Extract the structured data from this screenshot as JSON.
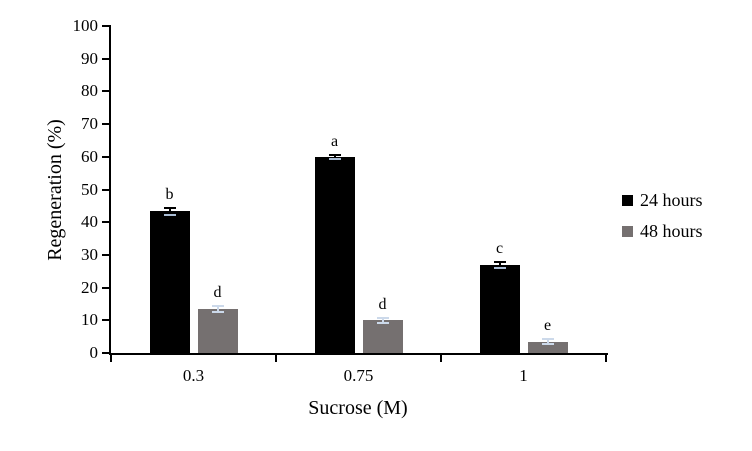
{
  "chart_data": {
    "type": "bar",
    "title": "",
    "xlabel": "Sucrose (M)",
    "ylabel": "Regeneration (%)",
    "categories": [
      "0.3",
      "0.75",
      "1"
    ],
    "series": [
      {
        "name": "24 hours",
        "color": "#000000",
        "error_color": "#000000",
        "inner_cap_color": "#aabdd5",
        "values": [
          43.3,
          60,
          26.8
        ],
        "errors": [
          1,
          0.7,
          0.9
        ],
        "point_labels": [
          "b",
          "a",
          "c"
        ]
      },
      {
        "name": "48 hours",
        "color": "#757070",
        "error_color": "#ccd9ea",
        "inner_cap_color": "#ccd9ea",
        "values": [
          13.4,
          10,
          3.4
        ],
        "errors": [
          0.9,
          0.8,
          0.8
        ],
        "point_labels": [
          "d",
          "d",
          "e"
        ]
      }
    ],
    "ylim": [
      0,
      100
    ],
    "yticks": [
      0,
      10,
      20,
      30,
      40,
      50,
      60,
      70,
      80,
      90,
      100
    ],
    "grid": false,
    "legend_position": "right"
  }
}
